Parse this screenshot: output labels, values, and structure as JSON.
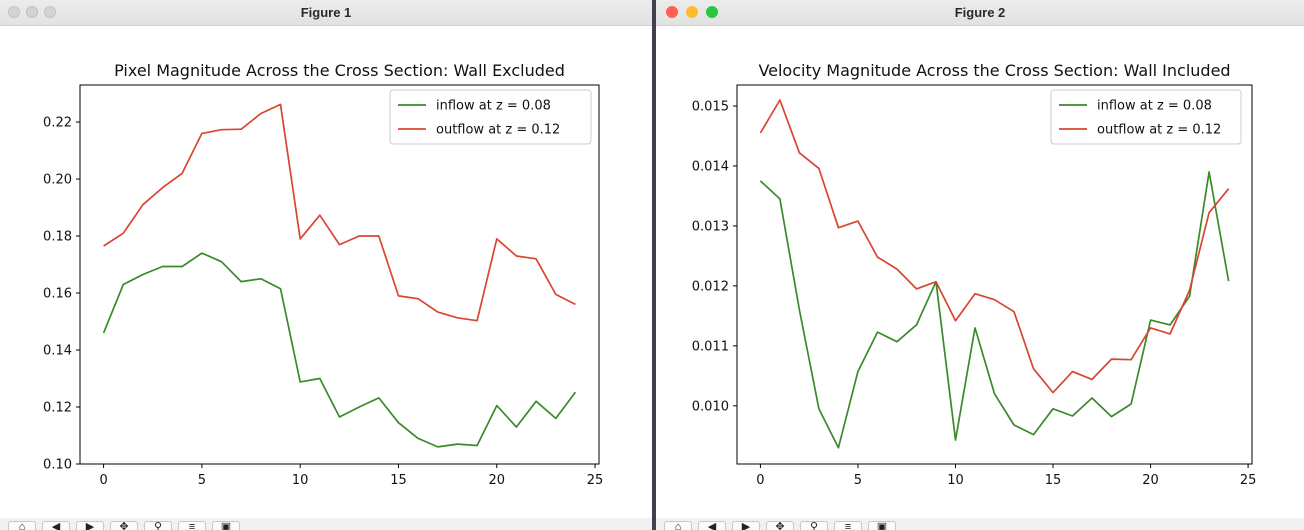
{
  "windows": [
    {
      "title": "Figure 1",
      "active": false
    },
    {
      "title": "Figure 2",
      "active": true
    }
  ],
  "toolbar": {
    "icons": [
      "home-icon",
      "back-icon",
      "forward-icon",
      "pan-icon",
      "zoom-icon",
      "subplots-icon",
      "save-icon"
    ]
  },
  "colors": {
    "inflow": "#3a8a2a",
    "outflow": "#d9452f"
  },
  "chart_data": [
    {
      "type": "line",
      "title": "Pixel Magnitude Across the Cross Section: Wall Excluded",
      "xlabel": "",
      "ylabel": "",
      "xlim": [
        -1.2,
        25.2
      ],
      "ylim": [
        0.1,
        0.233
      ],
      "xticks": [
        0,
        5,
        10,
        15,
        20,
        25
      ],
      "yticks": [
        0.1,
        0.12,
        0.14,
        0.16,
        0.18,
        0.2,
        0.22
      ],
      "ytick_labels": [
        "0.10",
        "0.12",
        "0.14",
        "0.16",
        "0.18",
        "0.20",
        "0.22"
      ],
      "grid": false,
      "legend_position": "top-right",
      "x": [
        0,
        1,
        2,
        3,
        4,
        5,
        6,
        7,
        8,
        9,
        10,
        11,
        12,
        13,
        14,
        15,
        16,
        17,
        18,
        19,
        20,
        21,
        22,
        23,
        24
      ],
      "series": [
        {
          "name": "inflow at z = 0.08",
          "color_key": "inflow",
          "values": [
            0.146,
            0.163,
            0.1665,
            0.1693,
            0.1693,
            0.174,
            0.171,
            0.164,
            0.165,
            0.1615,
            0.1288,
            0.13,
            0.1165,
            0.12,
            0.1232,
            0.1145,
            0.109,
            0.106,
            0.107,
            0.1065,
            0.1205,
            0.113,
            0.122,
            0.116,
            0.1252
          ]
        },
        {
          "name": "outflow at z = 0.12",
          "color_key": "outflow",
          "values": [
            0.1765,
            0.181,
            0.191,
            0.197,
            0.202,
            0.216,
            0.2173,
            0.2175,
            0.223,
            0.2262,
            0.179,
            0.1873,
            0.177,
            0.18,
            0.18,
            0.159,
            0.158,
            0.1533,
            0.1513,
            0.1503,
            0.179,
            0.173,
            0.172,
            0.1595,
            0.156
          ]
        }
      ]
    },
    {
      "type": "line",
      "title": "Velocity Magnitude Across the Cross Section: Wall Included",
      "xlabel": "",
      "ylabel": "",
      "xlim": [
        -1.2,
        25.2
      ],
      "ylim": [
        0.00903,
        0.01535
      ],
      "xticks": [
        0,
        5,
        10,
        15,
        20,
        25
      ],
      "yticks": [
        0.01,
        0.011,
        0.012,
        0.013,
        0.014,
        0.015
      ],
      "ytick_labels": [
        "0.010",
        "0.011",
        "0.012",
        "0.013",
        "0.014",
        "0.015"
      ],
      "grid": false,
      "legend_position": "top-right",
      "x": [
        0,
        1,
        2,
        3,
        4,
        5,
        6,
        7,
        8,
        9,
        10,
        11,
        12,
        13,
        14,
        15,
        16,
        17,
        18,
        19,
        20,
        21,
        22,
        23,
        24
      ],
      "series": [
        {
          "name": "inflow at z = 0.08",
          "color_key": "inflow",
          "values": [
            0.01375,
            0.01345,
            0.0116,
            0.00995,
            0.0093,
            0.01057,
            0.01123,
            0.01107,
            0.01135,
            0.01207,
            0.00943,
            0.0113,
            0.0102,
            0.00968,
            0.00952,
            0.00995,
            0.00983,
            0.01013,
            0.00982,
            0.01003,
            0.01143,
            0.01135,
            0.01183,
            0.0139,
            0.01208
          ]
        },
        {
          "name": "outflow at z = 0.12",
          "color_key": "outflow",
          "values": [
            0.01455,
            0.0151,
            0.01422,
            0.01396,
            0.01297,
            0.01308,
            0.01248,
            0.01228,
            0.01195,
            0.01207,
            0.01142,
            0.01187,
            0.01177,
            0.01157,
            0.01062,
            0.01022,
            0.01057,
            0.01044,
            0.01078,
            0.01077,
            0.0113,
            0.0112,
            0.01193,
            0.01322,
            0.01362
          ]
        }
      ]
    }
  ]
}
